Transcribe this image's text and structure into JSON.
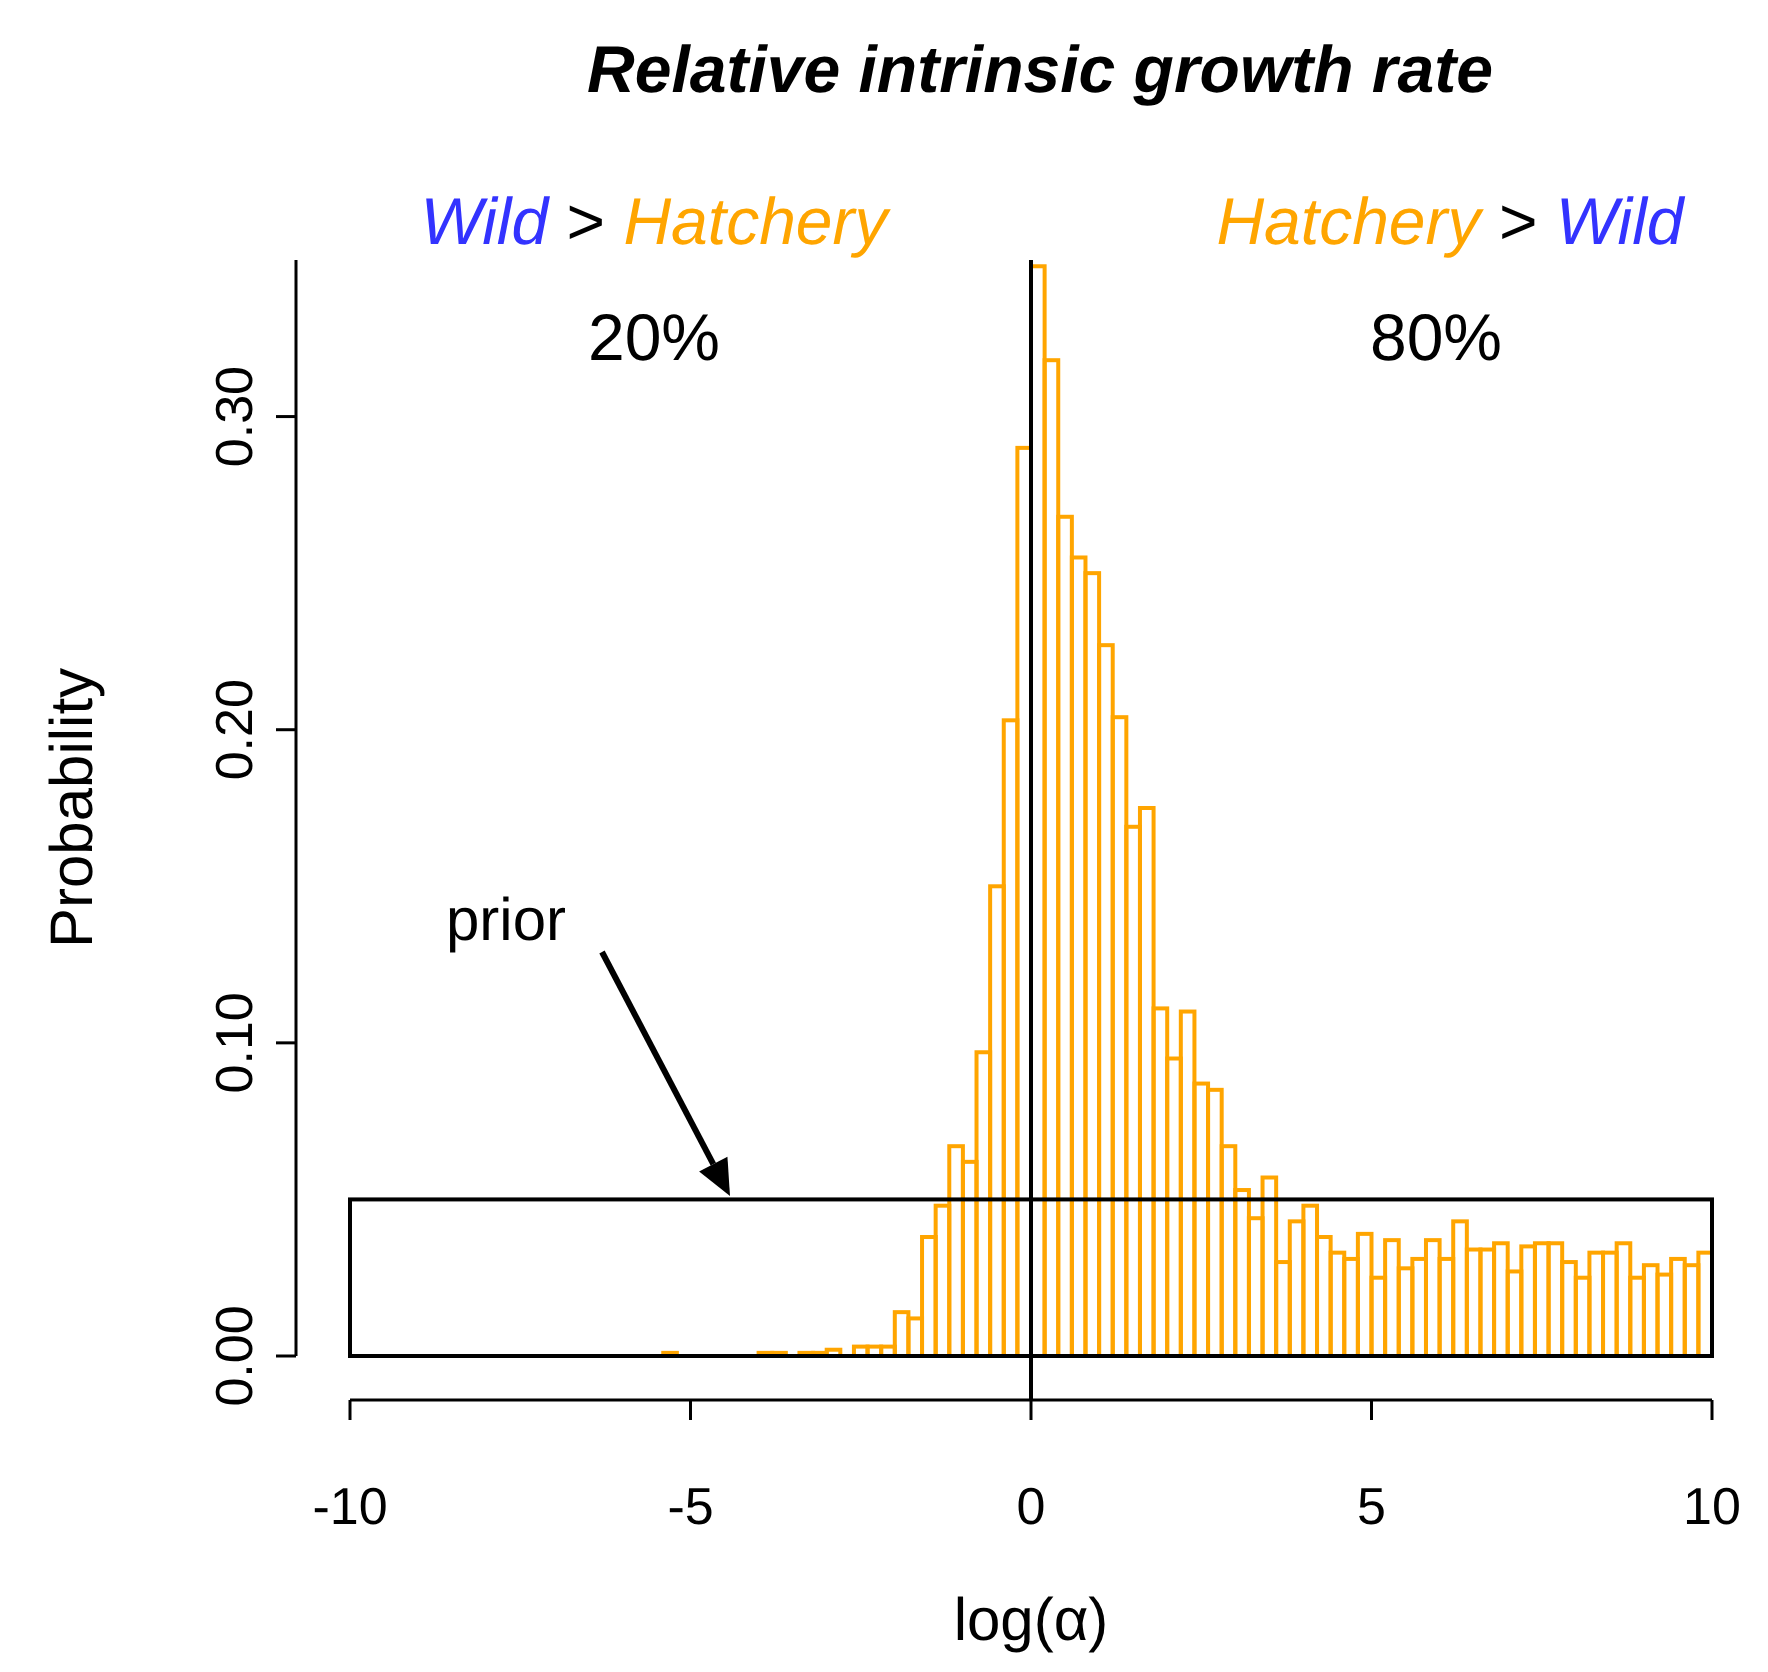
{
  "chart_data": {
    "type": "histogram",
    "title": "Relative intrinsic growth rate",
    "xlabel": "log(α)",
    "ylabel": "Probability",
    "bins": [
      -5.4,
      -5.2,
      -5.0,
      -4.8,
      -4.6,
      -4.4,
      -4.2,
      -4.0,
      -3.8,
      -3.6,
      -3.4,
      -3.2,
      -3.0,
      -2.8,
      -2.6,
      -2.4,
      -2.2,
      -2.0,
      -1.8,
      -1.6,
      -1.4,
      -1.2,
      -1.0,
      -0.8,
      -0.6,
      -0.4,
      -0.2,
      0.0,
      0.2,
      0.4,
      0.6,
      0.8,
      1.0,
      1.2,
      1.4,
      1.6,
      1.8,
      2.0,
      2.2,
      2.4,
      2.6,
      2.8,
      3.0,
      3.2,
      3.4,
      3.6,
      3.8,
      4.0,
      4.2,
      4.4,
      4.6,
      4.8,
      5.0,
      5.2,
      5.4,
      5.6,
      5.8,
      6.0,
      6.2,
      6.4,
      6.6,
      6.8,
      7.0,
      7.2,
      7.4,
      7.6,
      7.8,
      8.0,
      8.2,
      8.4,
      8.6,
      8.8,
      9.0,
      9.2,
      9.4,
      9.6,
      9.8,
      10.0
    ],
    "series": [
      {
        "color": "#ffa500",
        "values": [
          0.001,
          0,
          0,
          0,
          0,
          0,
          0,
          0.001,
          0.001,
          0,
          0.001,
          0.001,
          0.002,
          0,
          0.003,
          0.003,
          0.003,
          0.014,
          0.012,
          0.038,
          0.048,
          0.067,
          0.062,
          0.097,
          0.15,
          0.203,
          0.29,
          0.348,
          0.318,
          0.268,
          0.255,
          0.25,
          0.227,
          0.204,
          0.169,
          0.175,
          0.111,
          0.095,
          0.11,
          0.087,
          0.085,
          0.067,
          0.053,
          0.044,
          0.057,
          0.03,
          0.043,
          0.048,
          0.038,
          0.033,
          0.031,
          0.039,
          0.025,
          0.037,
          0.028,
          0.031,
          0.037,
          0.031,
          0.043,
          0.034,
          0.034,
          0.036,
          0.027,
          0.035,
          0.036,
          0.036,
          0.03,
          0.025,
          0.033,
          0.033,
          0.036,
          0.025,
          0.029,
          0.026,
          0.031,
          0.029,
          0.033
        ]
      },
      {
        "type": "histogram",
        "color": "#000000",
        "bins": [
          -10,
          10
        ],
        "values": [
          0.05
        ]
      }
    ],
    "ref_lines": [
      {
        "axis": "x",
        "value": 0,
        "color": "#000000"
      }
    ],
    "annotations": [
      "Wild > Hatchery",
      "20%",
      "Hatchery > Wild",
      "80%",
      "prior"
    ],
    "xlim": [
      -10,
      10
    ],
    "xticks": [
      -10,
      -5,
      0,
      5,
      10
    ],
    "ylim": [
      0,
      0.35
    ],
    "yticks": [
      {
        "value": 0,
        "label": "0.00"
      },
      {
        "value": 0.1,
        "label": "0.10"
      },
      {
        "value": 0.2,
        "label": "0.20"
      },
      {
        "value": 0.3,
        "label": "0.30"
      }
    ]
  }
}
